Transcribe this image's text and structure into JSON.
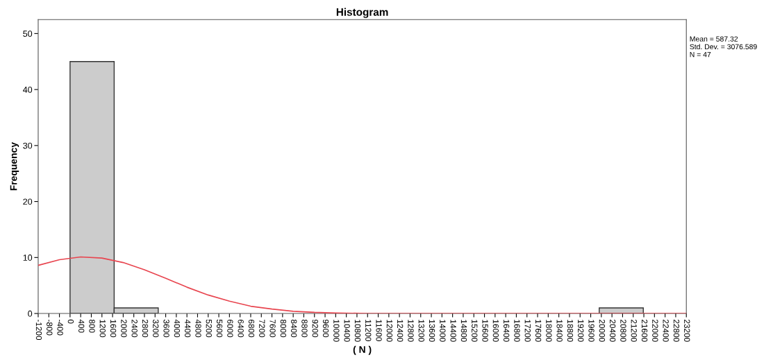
{
  "chart_data": {
    "type": "histogram",
    "title": "Histogram",
    "xlabel": "( N )",
    "ylabel": "Frequency",
    "bins": [
      0,
      1660,
      3320,
      4980,
      6640,
      8300,
      9960,
      11620,
      13280,
      14940,
      16600,
      18260,
      19920,
      21580
    ],
    "values": [
      45,
      1,
      0,
      0,
      0,
      0,
      0,
      0,
      0,
      0,
      0,
      0,
      1
    ],
    "color": "#cccccc",
    "series": [
      {
        "type": "line",
        "color": "#e8454f",
        "x": [
          -1200,
          -400,
          400,
          1200,
          2000,
          2800,
          3600,
          4400,
          5200,
          6000,
          6800,
          7600,
          8400,
          9200,
          10000,
          11200,
          12800,
          15000,
          18000,
          21000,
          23200
        ],
        "values": [
          8.6,
          9.6,
          10.1,
          9.9,
          9.1,
          7.8,
          6.3,
          4.7,
          3.3,
          2.2,
          1.3,
          0.8,
          0.4,
          0.2,
          0.1,
          0,
          0,
          0,
          0,
          0,
          0
        ]
      }
    ],
    "annotations": [
      "Mean = 587.32\nStd. Dev. = 3076.589\nN = 47"
    ],
    "xlim": [
      -1200,
      23200
    ],
    "xticks": [
      -1200,
      -800,
      -400,
      0,
      400,
      800,
      1200,
      1600,
      2000,
      2400,
      2800,
      3200,
      3600,
      4000,
      4400,
      4800,
      5200,
      5600,
      6000,
      6400,
      6800,
      7200,
      7600,
      8000,
      8400,
      8800,
      9200,
      9600,
      10000,
      10400,
      10800,
      11200,
      11600,
      12000,
      12400,
      12800,
      13200,
      13600,
      14000,
      14400,
      14800,
      15200,
      15600,
      16000,
      16400,
      16800,
      17200,
      17600,
      18000,
      18400,
      18800,
      19200,
      19600,
      20000,
      20400,
      20800,
      21200,
      21600,
      22000,
      22400,
      22800,
      23200
    ],
    "ylim": [
      0,
      52.5
    ],
    "yticks": [
      0,
      10,
      20,
      30,
      40,
      50
    ],
    "grid": false,
    "legend": false
  }
}
